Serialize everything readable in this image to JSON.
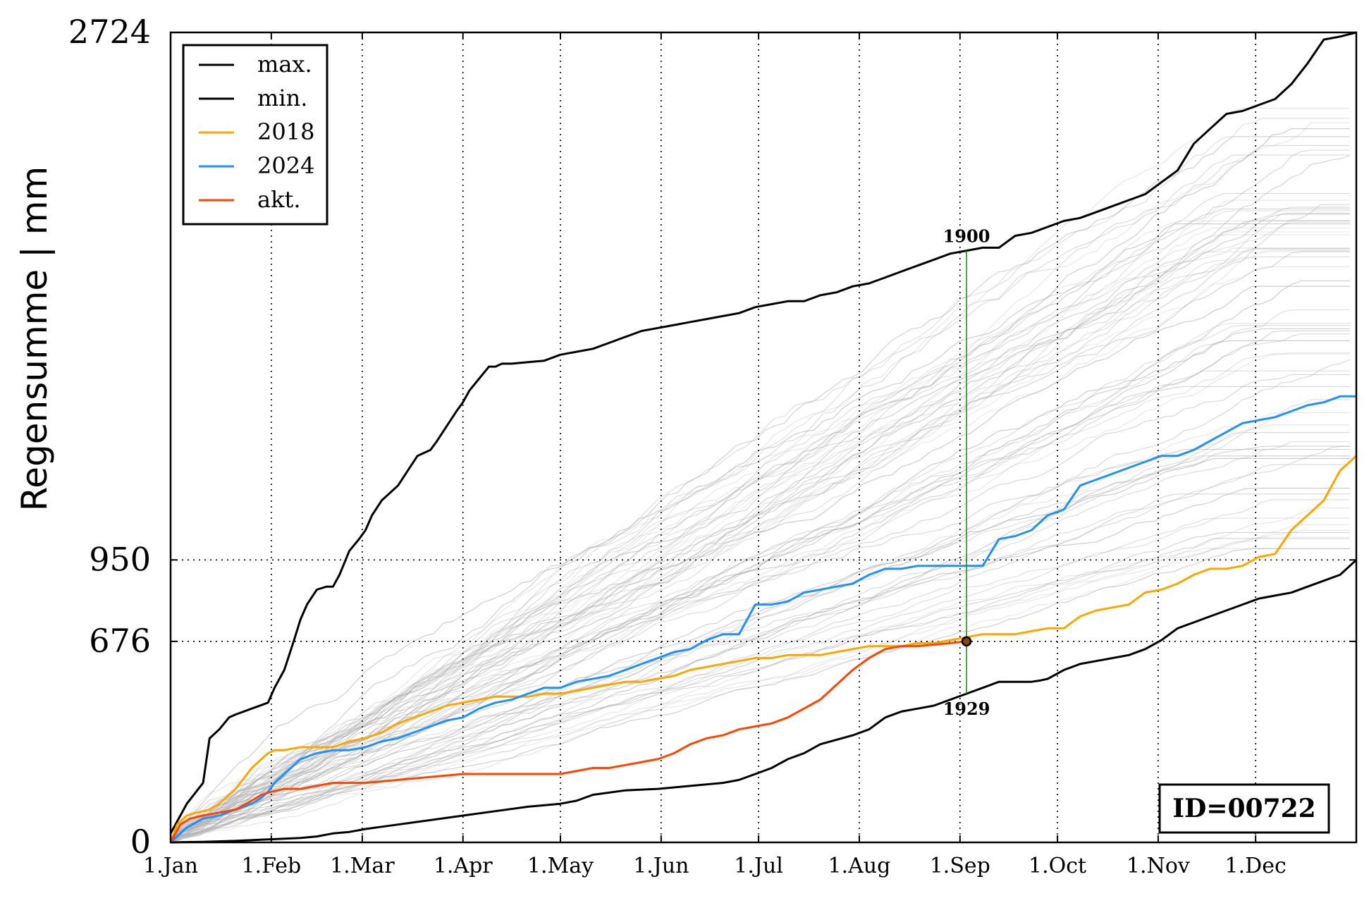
{
  "chart_data": {
    "type": "line",
    "title": "",
    "xlabel": "",
    "ylabel": "Regensumme | mm",
    "xlim_days": [
      0,
      365
    ],
    "ylim": [
      0,
      2724
    ],
    "grid": "dotted-vertical-at-month-starts",
    "legend_position": "top-left",
    "x_tick_labels": [
      "1.Jan",
      "1.Feb",
      "1.Mar",
      "1.Apr",
      "1.May",
      "1.Jun",
      "1.Jul",
      "1.Aug",
      "1.Sep",
      "1.Oct",
      "1.Nov",
      "1.Dec"
    ],
    "x_tick_days": [
      0,
      31,
      59,
      90,
      120,
      151,
      181,
      212,
      243,
      273,
      304,
      334
    ],
    "y_tick_labels": [
      "0",
      "676",
      "950",
      "2724"
    ],
    "y_tick_values": [
      0,
      676,
      950,
      2724
    ],
    "reference_lines": [
      {
        "axis": "y",
        "value": 950
      },
      {
        "axis": "y",
        "value": 676
      }
    ],
    "marker_day": 245,
    "marker_value": 676,
    "annotation_top": "1900",
    "annotation_bottom": "1929",
    "id_label": "ID=00722",
    "series": [
      {
        "name": "max.",
        "color": "#000000",
        "days": [
          0,
          5,
          10,
          12,
          15,
          18,
          20,
          25,
          30,
          32,
          35,
          38,
          40,
          42,
          45,
          48,
          50,
          52,
          55,
          58,
          60,
          62,
          65,
          70,
          73,
          76,
          80,
          82,
          85,
          88,
          90,
          92,
          95,
          98,
          100,
          102,
          105,
          110,
          115,
          120,
          125,
          130,
          135,
          140,
          145,
          150,
          155,
          160,
          165,
          170,
          175,
          180,
          185,
          190,
          195,
          200,
          205,
          210,
          215,
          220,
          225,
          230,
          235,
          240,
          245,
          250,
          255,
          260,
          265,
          270,
          275,
          280,
          285,
          290,
          295,
          300,
          305,
          310,
          315,
          320,
          325,
          330,
          335,
          340,
          345,
          350,
          355,
          360,
          365
        ],
        "values": [
          30,
          130,
          200,
          350,
          380,
          420,
          430,
          450,
          470,
          520,
          580,
          680,
          750,
          800,
          850,
          860,
          860,
          900,
          980,
          1020,
          1050,
          1100,
          1150,
          1200,
          1250,
          1300,
          1320,
          1350,
          1400,
          1450,
          1480,
          1520,
          1560,
          1600,
          1600,
          1610,
          1610,
          1615,
          1620,
          1640,
          1650,
          1660,
          1680,
          1700,
          1720,
          1730,
          1740,
          1750,
          1760,
          1770,
          1780,
          1800,
          1810,
          1820,
          1820,
          1840,
          1850,
          1870,
          1880,
          1900,
          1920,
          1940,
          1960,
          1980,
          1990,
          2000,
          2000,
          2040,
          2050,
          2070,
          2090,
          2100,
          2120,
          2140,
          2160,
          2180,
          2220,
          2260,
          2350,
          2400,
          2450,
          2460,
          2480,
          2500,
          2550,
          2620,
          2700,
          2710,
          2724
        ]
      },
      {
        "name": "min.",
        "color": "#000000",
        "days": [
          0,
          10,
          20,
          30,
          40,
          45,
          50,
          55,
          60,
          70,
          80,
          90,
          100,
          110,
          120,
          125,
          130,
          140,
          150,
          160,
          170,
          175,
          180,
          185,
          190,
          195,
          200,
          210,
          215,
          220,
          225,
          230,
          235,
          240,
          245,
          250,
          255,
          260,
          265,
          268,
          270,
          275,
          280,
          285,
          290,
          295,
          300,
          305,
          310,
          315,
          320,
          325,
          330,
          335,
          340,
          345,
          350,
          355,
          360,
          365
        ],
        "values": [
          0,
          2,
          5,
          10,
          15,
          20,
          30,
          35,
          45,
          60,
          75,
          90,
          105,
          120,
          130,
          140,
          160,
          175,
          180,
          190,
          200,
          210,
          230,
          250,
          280,
          300,
          330,
          360,
          380,
          420,
          440,
          450,
          460,
          480,
          500,
          520,
          540,
          540,
          540,
          545,
          550,
          580,
          600,
          610,
          620,
          630,
          650,
          680,
          720,
          740,
          760,
          780,
          800,
          820,
          830,
          840,
          860,
          880,
          900,
          950
        ]
      },
      {
        "name": "2018",
        "color": "#FFA500",
        "days": [
          0,
          2,
          5,
          8,
          12,
          15,
          20,
          25,
          28,
          30,
          32,
          35,
          40,
          45,
          50,
          55,
          60,
          65,
          70,
          75,
          80,
          85,
          90,
          95,
          100,
          105,
          110,
          115,
          120,
          125,
          130,
          135,
          140,
          145,
          150,
          155,
          160,
          165,
          170,
          175,
          180,
          185,
          190,
          195,
          200,
          205,
          210,
          215,
          220,
          225,
          230,
          235,
          240,
          245,
          250,
          255,
          260,
          265,
          270,
          275,
          280,
          285,
          290,
          295,
          300,
          305,
          310,
          315,
          320,
          325,
          330,
          335,
          340,
          345,
          350,
          355,
          360,
          365
        ],
        "values": [
          0,
          60,
          90,
          100,
          110,
          130,
          180,
          250,
          280,
          300,
          310,
          310,
          320,
          320,
          320,
          340,
          350,
          370,
          400,
          420,
          440,
          460,
          470,
          480,
          490,
          490,
          490,
          500,
          500,
          510,
          520,
          530,
          540,
          540,
          550,
          560,
          580,
          590,
          600,
          610,
          620,
          620,
          630,
          630,
          630,
          640,
          650,
          660,
          660,
          660,
          670,
          670,
          680,
          690,
          700,
          700,
          700,
          710,
          720,
          720,
          760,
          780,
          790,
          800,
          840,
          850,
          870,
          900,
          920,
          920,
          930,
          960,
          970,
          1050,
          1100,
          1150,
          1250,
          1300
        ]
      },
      {
        "name": "2024",
        "color": "#1E90FF",
        "days": [
          0,
          5,
          10,
          15,
          20,
          25,
          28,
          30,
          32,
          35,
          40,
          45,
          50,
          55,
          60,
          65,
          70,
          75,
          80,
          85,
          90,
          95,
          100,
          105,
          110,
          115,
          120,
          125,
          130,
          135,
          140,
          145,
          150,
          155,
          160,
          165,
          170,
          175,
          180,
          185,
          190,
          195,
          200,
          205,
          210,
          215,
          220,
          225,
          230,
          235,
          240,
          245,
          250,
          255,
          260,
          265,
          270,
          275,
          280,
          285,
          290,
          295,
          300,
          305,
          310,
          315,
          320,
          325,
          330,
          335,
          340,
          345,
          350,
          355,
          360,
          365
        ],
        "values": [
          0,
          50,
          80,
          90,
          110,
          130,
          150,
          170,
          200,
          230,
          280,
          300,
          310,
          310,
          320,
          340,
          350,
          370,
          390,
          410,
          420,
          450,
          470,
          480,
          500,
          520,
          520,
          540,
          550,
          560,
          580,
          600,
          620,
          640,
          650,
          680,
          700,
          700,
          800,
          800,
          810,
          840,
          850,
          860,
          870,
          900,
          920,
          920,
          930,
          930,
          930,
          930,
          930,
          1020,
          1030,
          1050,
          1100,
          1120,
          1200,
          1220,
          1240,
          1260,
          1280,
          1300,
          1300,
          1320,
          1350,
          1380,
          1410,
          1420,
          1430,
          1450,
          1470,
          1480,
          1500,
          1500
        ]
      },
      {
        "name": "akt.",
        "color": "#FF4500",
        "days": [
          0,
          3,
          6,
          10,
          15,
          20,
          25,
          28,
          31,
          35,
          40,
          45,
          50,
          55,
          60,
          70,
          80,
          90,
          100,
          110,
          120,
          130,
          135,
          140,
          145,
          150,
          155,
          160,
          165,
          170,
          175,
          180,
          185,
          190,
          195,
          200,
          205,
          210,
          215,
          220,
          225,
          230,
          235,
          240,
          245
        ],
        "values": [
          0,
          60,
          80,
          90,
          100,
          110,
          140,
          160,
          170,
          180,
          180,
          190,
          200,
          200,
          200,
          210,
          220,
          230,
          230,
          230,
          230,
          250,
          250,
          260,
          270,
          280,
          300,
          330,
          350,
          360,
          380,
          390,
          400,
          420,
          450,
          480,
          530,
          580,
          620,
          650,
          660,
          660,
          665,
          670,
          676
        ]
      }
    ]
  },
  "background_series_color": "#b0b0b0"
}
